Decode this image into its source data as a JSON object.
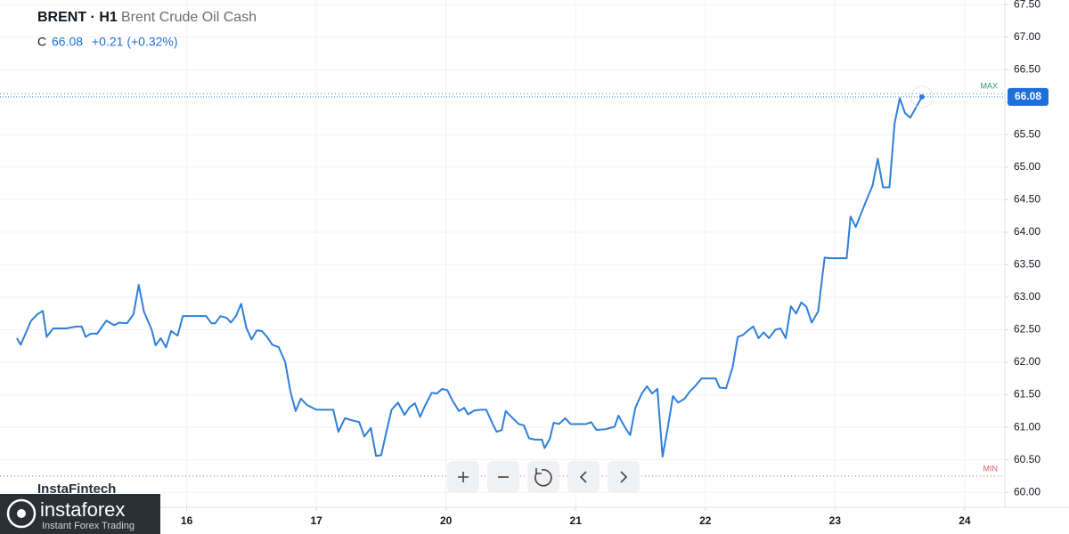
{
  "chart_data": {
    "type": "line",
    "title": "BRENT · H1",
    "subtitle": "Brent Crude Oil Cash",
    "ohlc_label": "C",
    "close": 66.08,
    "change": "+0.21 (+0.32%)",
    "watermark": "InstaFintech",
    "logo": {
      "name": "instaforex",
      "tagline": "Instant Forex Trading"
    },
    "xlim": [
      -1.44,
      6.31
    ],
    "xticks": [
      {
        "value": 0,
        "label": "16"
      },
      {
        "value": 1,
        "label": "17"
      },
      {
        "value": 2,
        "label": "20"
      },
      {
        "value": 3,
        "label": "21"
      },
      {
        "value": 4,
        "label": "22"
      },
      {
        "value": 5,
        "label": "23"
      },
      {
        "value": 6,
        "label": "24"
      }
    ],
    "ylim": [
      59.77,
      67.57
    ],
    "yticks": [
      {
        "value": 60,
        "label": "60.00"
      },
      {
        "value": 60.5,
        "label": "60.50"
      },
      {
        "value": 61,
        "label": "61.00"
      },
      {
        "value": 61.5,
        "label": "61.50"
      },
      {
        "value": 62,
        "label": "62.00"
      },
      {
        "value": 62.5,
        "label": "62.50"
      },
      {
        "value": 63,
        "label": "63.00"
      },
      {
        "value": 63.5,
        "label": "63.50"
      },
      {
        "value": 64,
        "label": "64.00"
      },
      {
        "value": 64.5,
        "label": "64.50"
      },
      {
        "value": 65,
        "label": "65.00"
      },
      {
        "value": 65.5,
        "label": "65.50"
      },
      {
        "value": 66,
        "label": "66.00"
      },
      {
        "value": 66.5,
        "label": "66.50"
      },
      {
        "value": 67,
        "label": "67.00"
      },
      {
        "value": 67.5,
        "label": "67.50"
      }
    ],
    "grid": true,
    "reference_lines": [
      {
        "label": "MAX",
        "value": 66.13,
        "color": "#2e9e5b"
      },
      {
        "label": "MIN",
        "value": 60.25,
        "color": "#e05a5a"
      }
    ],
    "series": [
      {
        "name": "BRENT",
        "color": "#2f7fd8",
        "x": [
          -1.31,
          -1.28,
          -1.2,
          -1.15,
          -1.11,
          -1.08,
          -1.03,
          -0.93,
          -0.85,
          -0.81,
          -0.78,
          -0.74,
          -0.69,
          -0.62,
          -0.56,
          -0.52,
          -0.46,
          -0.41,
          -0.37,
          -0.33,
          -0.27,
          -0.24,
          -0.2,
          -0.16,
          -0.12,
          -0.07,
          -0.03,
          0.07,
          0.15,
          0.19,
          0.22,
          0.26,
          0.31,
          0.34,
          0.38,
          0.42,
          0.46,
          0.5,
          0.54,
          0.58,
          0.62,
          0.66,
          0.71,
          0.76,
          0.8,
          0.84,
          0.88,
          0.93,
          1.0,
          1.11,
          1.13,
          1.17,
          1.22,
          1.27,
          1.33,
          1.37,
          1.42,
          1.46,
          1.5,
          1.54,
          1.58,
          1.63,
          1.68,
          1.72,
          1.76,
          1.8,
          1.84,
          1.89,
          1.93,
          1.97,
          2.01,
          2.05,
          2.1,
          2.14,
          2.17,
          2.22,
          2.27,
          2.31,
          2.36,
          2.39,
          2.43,
          2.46,
          2.51,
          2.56,
          2.6,
          2.64,
          2.69,
          2.74,
          2.76,
          2.8,
          2.83,
          2.87,
          2.92,
          2.96,
          3.04,
          3.08,
          3.12,
          3.16,
          3.23,
          3.3,
          3.33,
          3.38,
          3.42,
          3.46,
          3.51,
          3.55,
          3.59,
          3.63,
          3.67,
          3.71,
          3.75,
          3.79,
          3.84,
          3.88,
          3.92,
          3.97,
          4.02,
          4.08,
          4.11,
          4.16,
          4.21,
          4.25,
          4.29,
          4.33,
          4.37,
          4.41,
          4.45,
          4.49,
          4.54,
          4.58,
          4.62,
          4.66,
          4.7,
          4.74,
          4.78,
          4.82,
          4.87,
          4.92,
          4.96,
          5.09,
          5.12,
          5.16,
          5.2,
          5.24,
          5.29,
          5.33,
          5.37,
          5.42,
          5.46,
          5.5,
          5.54,
          5.58,
          5.62,
          5.67
        ],
        "values": [
          62.37,
          62.27,
          62.64,
          62.74,
          62.79,
          62.39,
          62.52,
          62.52,
          62.55,
          62.55,
          62.39,
          62.44,
          62.44,
          62.64,
          62.57,
          62.61,
          62.6,
          62.74,
          63.19,
          62.78,
          62.5,
          62.26,
          62.37,
          62.23,
          62.48,
          62.41,
          62.71,
          62.71,
          62.71,
          62.6,
          62.6,
          62.71,
          62.68,
          62.61,
          62.71,
          62.9,
          62.53,
          62.35,
          62.49,
          62.48,
          62.39,
          62.27,
          62.23,
          62.0,
          61.55,
          61.25,
          61.44,
          61.34,
          61.27,
          61.27,
          61.27,
          60.93,
          61.14,
          61.11,
          61.08,
          60.86,
          60.99,
          60.56,
          60.57,
          60.93,
          61.27,
          61.38,
          61.19,
          61.31,
          61.37,
          61.16,
          61.34,
          61.53,
          61.52,
          61.59,
          61.57,
          61.41,
          61.25,
          61.3,
          61.2,
          61.26,
          61.27,
          61.27,
          61.05,
          60.93,
          60.96,
          61.25,
          61.15,
          61.05,
          61.03,
          60.83,
          60.81,
          60.81,
          60.68,
          60.82,
          61.07,
          61.05,
          61.14,
          61.05,
          61.05,
          61.05,
          61.08,
          60.96,
          60.97,
          61.01,
          61.18,
          61.0,
          60.88,
          61.3,
          61.52,
          61.63,
          61.52,
          61.59,
          60.55,
          60.99,
          61.48,
          61.38,
          61.44,
          61.55,
          61.63,
          61.75,
          61.75,
          61.75,
          61.61,
          61.6,
          61.92,
          62.39,
          62.42,
          62.49,
          62.55,
          62.37,
          62.46,
          62.37,
          62.5,
          62.52,
          62.37,
          62.86,
          62.75,
          62.92,
          62.85,
          62.61,
          62.78,
          63.61,
          63.6,
          63.6,
          64.24,
          64.08,
          64.28,
          64.48,
          64.72,
          65.13,
          64.69,
          64.69,
          65.68,
          66.06,
          65.83,
          65.76,
          65.9,
          66.08
        ]
      }
    ]
  }
}
